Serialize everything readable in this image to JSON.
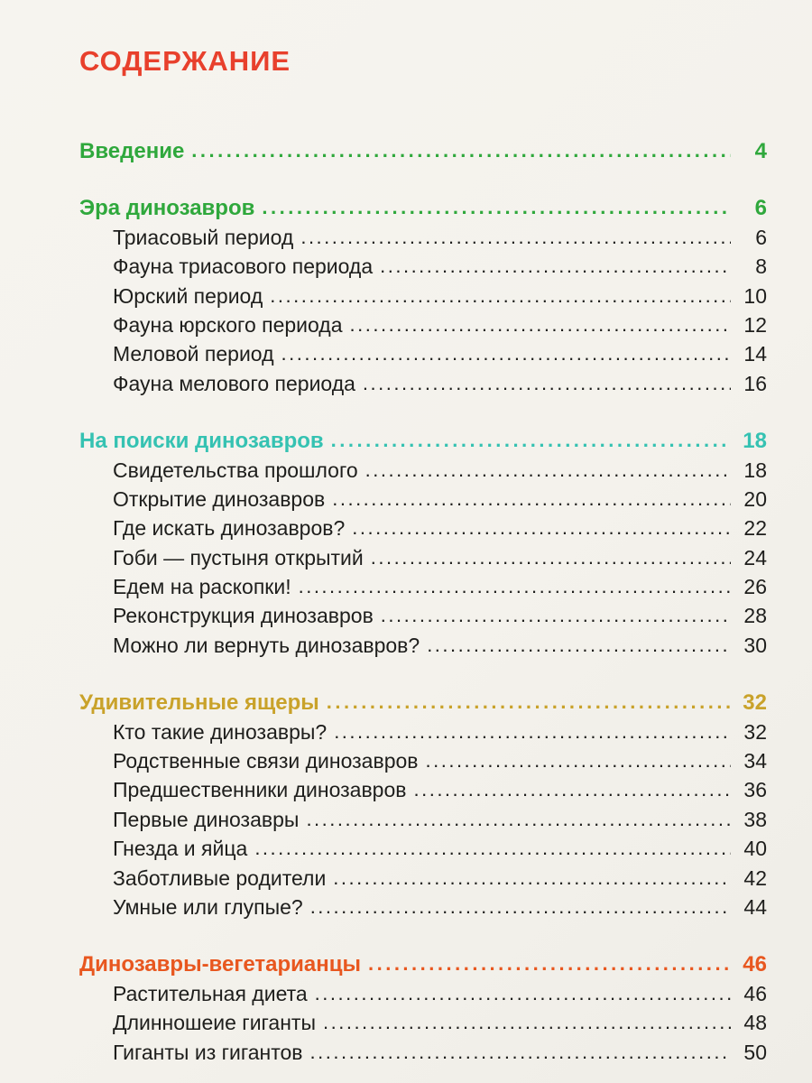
{
  "page": {
    "title": "СОДЕРЖАНИЕ",
    "title_color": "#e8402c",
    "background_color": "#f5f3ee",
    "body_text_color": "#1e1e1c"
  },
  "toc": {
    "sections": [
      {
        "label": "Введение",
        "page": "4",
        "color": "#2fa83c",
        "items": []
      },
      {
        "label": "Эра динозавров",
        "page": "6",
        "color": "#2fa83c",
        "items": [
          {
            "label": "Триасовый период",
            "page": "6"
          },
          {
            "label": "Фауна триасового периода",
            "page": "8"
          },
          {
            "label": "Юрский период",
            "page": "10"
          },
          {
            "label": "Фауна юрского периода",
            "page": "12"
          },
          {
            "label": "Меловой период",
            "page": "14"
          },
          {
            "label": "Фауна мелового периода",
            "page": "16"
          }
        ]
      },
      {
        "label": "На поиски динозавров",
        "page": "18",
        "color": "#35c2b2",
        "items": [
          {
            "label": "Свидетельства прошлого",
            "page": "18"
          },
          {
            "label": "Открытие динозавров",
            "page": "20"
          },
          {
            "label": "Где искать динозавров?",
            "page": "22"
          },
          {
            "label": "Гоби — пустыня открытий",
            "page": "24"
          },
          {
            "label": "Едем на раскопки!",
            "page": "26"
          },
          {
            "label": "Реконструкция динозавров",
            "page": "28"
          },
          {
            "label": "Можно ли вернуть динозавров?",
            "page": "30"
          }
        ]
      },
      {
        "label": "Удивительные ящеры",
        "page": "32",
        "color": "#c9a22a",
        "items": [
          {
            "label": "Кто такие динозавры?",
            "page": "32"
          },
          {
            "label": "Родственные связи динозавров",
            "page": "34"
          },
          {
            "label": "Предшественники динозавров",
            "page": "36"
          },
          {
            "label": "Первые динозавры",
            "page": "38"
          },
          {
            "label": "Гнезда и яйца",
            "page": "40"
          },
          {
            "label": "Заботливые родители",
            "page": "42"
          },
          {
            "label": "Умные или глупые?",
            "page": "44"
          }
        ]
      },
      {
        "label": "Динозавры-вегетарианцы",
        "page": "46",
        "color": "#e8571f",
        "items": [
          {
            "label": "Растительная диета",
            "page": "46"
          },
          {
            "label": "Длинношеие гиганты",
            "page": "48"
          },
          {
            "label": "Гиганты из гигантов",
            "page": "50"
          }
        ]
      }
    ]
  }
}
